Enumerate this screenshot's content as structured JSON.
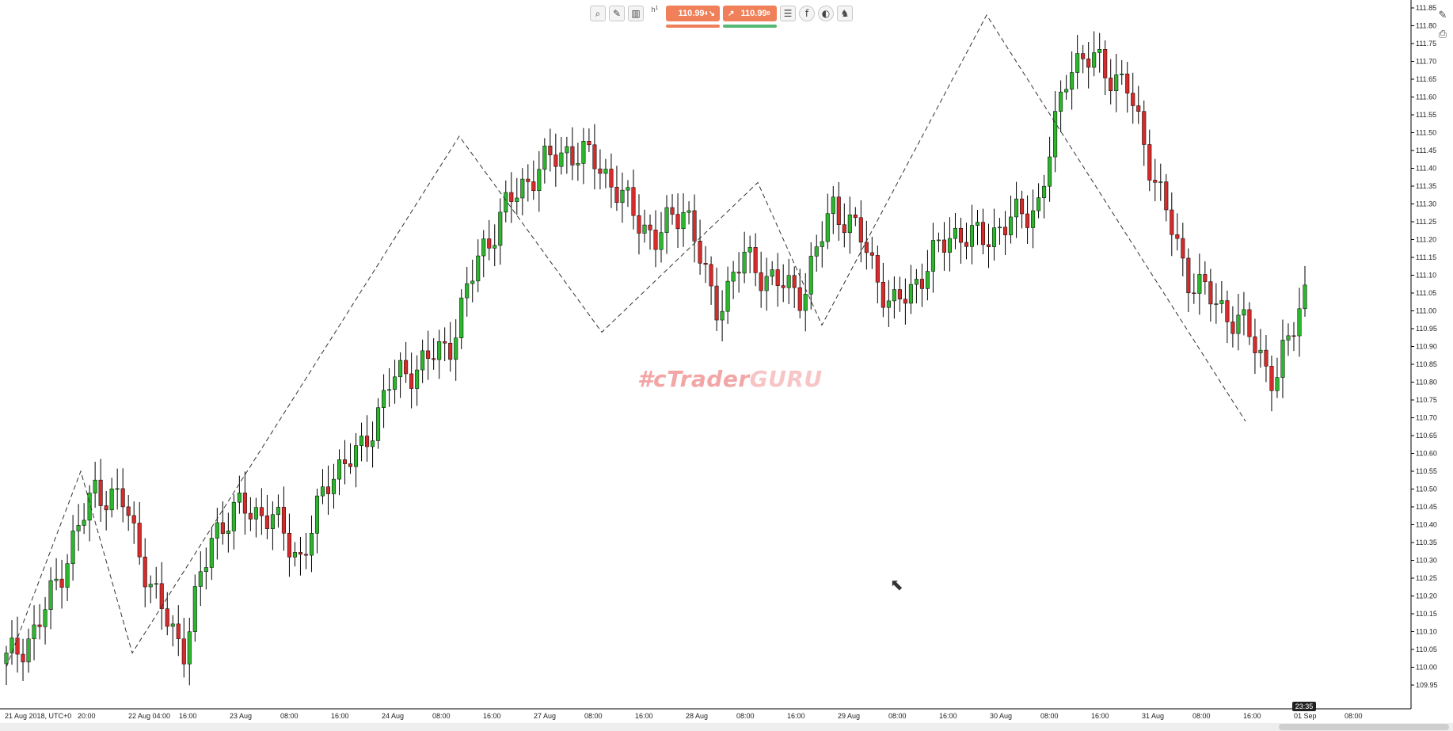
{
  "symbol_info": {
    "timezone_label": "21 Aug 2018, UTC+0",
    "current_time": "23:35"
  },
  "toolbar": {
    "icons": [
      "zoom-icon",
      "drawing-tools-icon",
      "chart-type-icon",
      "timeframe-icon",
      "indicators-icon",
      "facebook-icon",
      "theme-icon",
      "trader-icon"
    ],
    "timeframe_label": "h",
    "timeframe_value": "1",
    "sell_price": "110.99",
    "sell_sup": "4",
    "buy_price": "110.99",
    "buy_sup": "8"
  },
  "watermark": {
    "part1": "#cTrader",
    "part2": "GURU"
  },
  "right_icons": [
    "edit-icon",
    "camera-icon"
  ],
  "colors": {
    "bull": "#2db52d",
    "bear": "#d42b2b",
    "wick": "#000000",
    "zigzag": "#333333"
  },
  "chart_data": {
    "type": "candlestick",
    "y_axis": {
      "min": 109.95,
      "max": 111.85,
      "step": 0.05,
      "labels": [
        "109.95",
        "110.00",
        "110.05",
        "110.10",
        "110.15",
        "110.20",
        "110.25",
        "110.30",
        "110.35",
        "110.40",
        "110.45",
        "110.50",
        "110.55",
        "110.60",
        "110.65",
        "110.70",
        "110.75",
        "110.80",
        "110.85",
        "110.90",
        "110.95",
        "111.00",
        "111.05",
        "111.10",
        "111.15",
        "111.20",
        "111.25",
        "111.30",
        "111.35",
        "111.40",
        "111.45",
        "111.50",
        "111.55",
        "111.60",
        "111.65",
        "111.70",
        "111.75",
        "111.80",
        "111.85"
      ]
    },
    "x_axis_labels": [
      "21 Aug 2018, UTC+0",
      "20:00",
      "22 Aug 04:00",
      "16:00",
      "23 Aug",
      "08:00",
      "16:00",
      "24 Aug",
      "08:00",
      "16:00",
      "27 Aug",
      "08:00",
      "16:00",
      "28 Aug",
      "08:00",
      "16:00",
      "29 Aug",
      "08:00",
      "16:00",
      "30 Aug",
      "08:00",
      "16:00",
      "31 Aug",
      "08:00",
      "16:00",
      "01 Sep",
      "08:00"
    ],
    "zigzag": [
      110.0,
      110.55,
      110.04,
      111.49,
      110.94,
      111.36,
      110.96,
      111.83,
      110.69
    ],
    "anchors": [
      110.02,
      110.1,
      110.3,
      110.5,
      110.46,
      110.2,
      110.05,
      110.38,
      110.45,
      110.42,
      110.3,
      110.55,
      110.6,
      110.8,
      110.85,
      110.9,
      111.15,
      111.3,
      111.4,
      111.45,
      111.42,
      111.3,
      111.2,
      111.3,
      111.0,
      111.15,
      111.08,
      111.05,
      111.3,
      111.2,
      111.0,
      111.1,
      111.22,
      111.2,
      111.25,
      111.3,
      111.7,
      111.7,
      111.62,
      111.35,
      111.1,
      111.02,
      110.95,
      110.8,
      111.06
    ],
    "candles_note_hidden": ""
  }
}
